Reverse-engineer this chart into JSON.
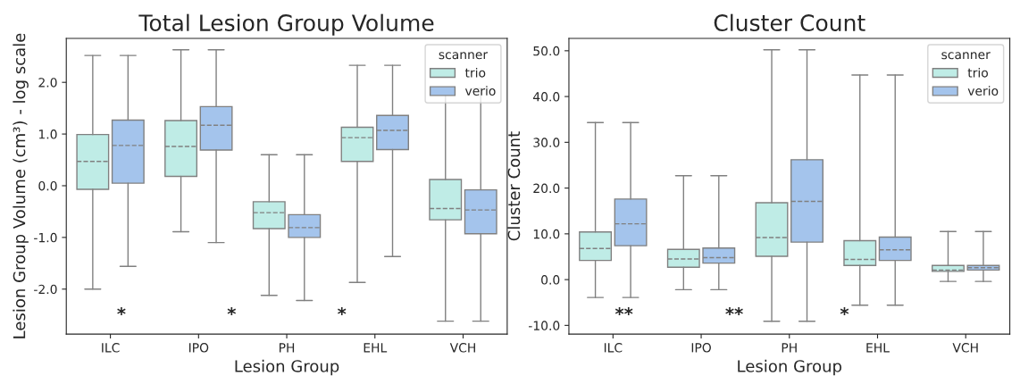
{
  "chart_data": [
    {
      "type": "box",
      "title": "Total Lesion Group Volume",
      "xlabel": "Lesion Group",
      "ylabel": "Lesion Group Volume (cm³) - log scale",
      "legend_title": "scanner",
      "legend": "top right",
      "categories": [
        "ILC",
        "IPO",
        "PH",
        "EHL",
        "VCH"
      ],
      "ylim": [
        -2.87,
        2.85
      ],
      "yticks": [
        {
          "value": -2,
          "label": "-2.0"
        },
        {
          "value": -1,
          "label": "-1.0"
        },
        {
          "value": 0,
          "label": "0.0"
        },
        {
          "value": 1,
          "label": "1.0"
        },
        {
          "value": 2,
          "label": "2.0"
        }
      ],
      "series": [
        {
          "name": "trio",
          "color": "#bfece6",
          "boxes": [
            {
              "low": -2.0,
              "q1": -0.07,
              "median": 0.47,
              "q3": 0.99,
              "high": 2.52
            },
            {
              "low": -0.89,
              "q1": 0.18,
              "median": 0.76,
              "q3": 1.26,
              "high": 2.63
            },
            {
              "low": -2.12,
              "q1": -0.83,
              "median": -0.52,
              "q3": -0.31,
              "high": 0.6
            },
            {
              "low": -1.87,
              "q1": 0.47,
              "median": 0.93,
              "q3": 1.13,
              "high": 2.33
            },
            {
              "low": -2.62,
              "q1": -0.66,
              "median": -0.44,
              "q3": 0.12,
              "high": 1.88
            }
          ]
        },
        {
          "name": "verio",
          "color": "#a4c4ec",
          "boxes": [
            {
              "low": -1.56,
              "q1": 0.05,
              "median": 0.78,
              "q3": 1.27,
              "high": 2.52
            },
            {
              "low": -1.1,
              "q1": 0.69,
              "median": 1.17,
              "q3": 1.53,
              "high": 2.63
            },
            {
              "low": -2.22,
              "q1": -1.0,
              "median": -0.81,
              "q3": -0.56,
              "high": 0.6
            },
            {
              "low": -1.37,
              "q1": 0.7,
              "median": 1.07,
              "q3": 1.36,
              "high": 2.33
            },
            {
              "low": -2.62,
              "q1": -0.93,
              "median": -0.47,
              "q3": -0.08,
              "high": 1.88
            }
          ]
        }
      ],
      "annotations": [
        "*",
        "*",
        "*"
      ]
    },
    {
      "type": "box",
      "title": "Cluster Count",
      "xlabel": "Lesion Group",
      "ylabel": "Cluster Count",
      "legend_title": "scanner",
      "legend": "top right",
      "categories": [
        "ILC",
        "IPO",
        "PH",
        "EHL",
        "VCH"
      ],
      "ylim": [
        -11.9,
        52.7
      ],
      "yticks": [
        {
          "value": -10,
          "label": "-10.0"
        },
        {
          "value": 0,
          "label": "0.0"
        },
        {
          "value": 10,
          "label": "10.0"
        },
        {
          "value": 20,
          "label": "20.0"
        },
        {
          "value": 30,
          "label": "30.0"
        },
        {
          "value": 40,
          "label": "40.0"
        },
        {
          "value": 50,
          "label": "50.0"
        }
      ],
      "series": [
        {
          "name": "trio",
          "color": "#bfece6",
          "boxes": [
            {
              "low": -3.9,
              "q1": 4.2,
              "median": 6.8,
              "q3": 10.4,
              "high": 34.3
            },
            {
              "low": -2.2,
              "q1": 2.7,
              "median": 4.5,
              "q3": 6.6,
              "high": 22.7
            },
            {
              "low": -9.1,
              "q1": 5.1,
              "median": 9.2,
              "q3": 16.8,
              "high": 50.2
            },
            {
              "low": -5.6,
              "q1": 3.1,
              "median": 4.4,
              "q3": 8.5,
              "high": 44.7
            },
            {
              "low": -0.4,
              "q1": 1.8,
              "median": 2.1,
              "q3": 3.1,
              "high": 10.5
            }
          ]
        },
        {
          "name": "verio",
          "color": "#a4c4ec",
          "boxes": [
            {
              "low": -3.9,
              "q1": 7.4,
              "median": 12.2,
              "q3": 17.6,
              "high": 34.3
            },
            {
              "low": -2.2,
              "q1": 3.6,
              "median": 4.8,
              "q3": 6.9,
              "high": 22.7
            },
            {
              "low": -9.1,
              "q1": 8.2,
              "median": 17.1,
              "q3": 26.2,
              "high": 50.2
            },
            {
              "low": -5.6,
              "q1": 4.2,
              "median": 6.5,
              "q3": 9.3,
              "high": 44.7
            },
            {
              "low": -0.4,
              "q1": 2.1,
              "median": 2.6,
              "q3": 3.1,
              "high": 10.5
            }
          ]
        }
      ],
      "annotations": [
        "**",
        "**",
        "*"
      ]
    }
  ]
}
